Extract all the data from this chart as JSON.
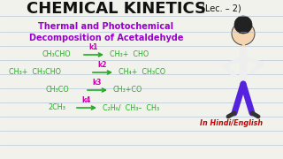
{
  "bg_color": "#f2f2ec",
  "title_main": "CHEMICAL KINETICS",
  "title_sub": "(Lec. – 2)",
  "subtitle_line1": "Thermal and Photochemical",
  "subtitle_line2": "Decomposition of Acetaldehyde",
  "subtitle_color": "#9900cc",
  "reaction_color": "#22aa22",
  "rate_color": "#cc00aa",
  "footer": "In Hindi/English",
  "footer_color": "#cc0000",
  "line_color": "#aabbd4",
  "title_color": "#111111",
  "rxn1_left": "CH₃CHO",
  "rxn1_right": "CH₃+  CHO",
  "rxn2_left": "CH₃+  CH₃CHO",
  "rxn2_right": "CH₄+  CH₃CO",
  "rxn3_left": "CH₃CO",
  "rxn3_right": "CH₃+CO",
  "rxn4_left": "2CH₃",
  "rxn4_right": "C₂H₆/  CH₃–  CH₃",
  "k_labels": [
    "k1",
    "k2",
    "k3",
    "k4"
  ]
}
